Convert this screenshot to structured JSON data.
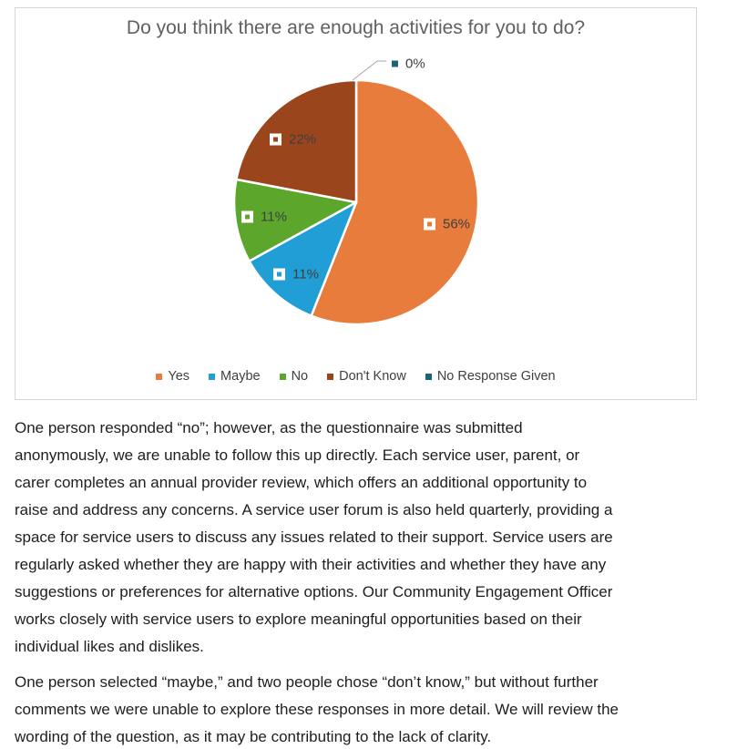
{
  "chart": {
    "title": "Do you think there are enough activities for you to do?"
  },
  "chart_data": {
    "type": "pie",
    "title": "Do you think there are enough activities for you to do?",
    "categories": [
      "Yes",
      "Maybe",
      "No",
      "Don't Know",
      "No Response Given"
    ],
    "values": [
      56,
      11,
      11,
      22,
      0
    ],
    "data_labels": [
      "56%",
      "11%",
      "11%",
      "22%",
      "0%"
    ],
    "colors": [
      "#E87C3C",
      "#219ED6",
      "#5CA62C",
      "#9B451C",
      "#1B6378"
    ],
    "title_color": "#606060",
    "label_color": "#404040",
    "slice_border_color": "#FFFFFF",
    "leader_line_color": "#A8A8A8",
    "legend_position": "bottom",
    "start_angle_deg": 0,
    "direction": "clockwise"
  },
  "paragraphs": [
    {
      "lines": [
        "One person responded “no”; however, as the questionnaire was submitted",
        "anonymously, we are unable to follow this up directly. Each service user, parent, or",
        "carer completes an annual provider review, which offers an additional opportunity to",
        "raise and address any concerns. A service user forum is also held quarterly, providing a",
        "space for service users to discuss any issues related to their support. Service users are",
        "regularly asked whether they are happy with their activities and whether they have any",
        "suggestions or preferences for alternative options. Our Community Engagement Officer",
        "works closely with service users to explore meaningful opportunities based on their",
        "individual likes and dislikes."
      ]
    },
    {
      "lines": [
        "One person selected “maybe,” and two people chose “don’t know,” but without further",
        "comments we were unable to explore these responses in more detail. We will review the",
        "wording of the question, as it may be contributing to the lack of clarity."
      ]
    }
  ]
}
